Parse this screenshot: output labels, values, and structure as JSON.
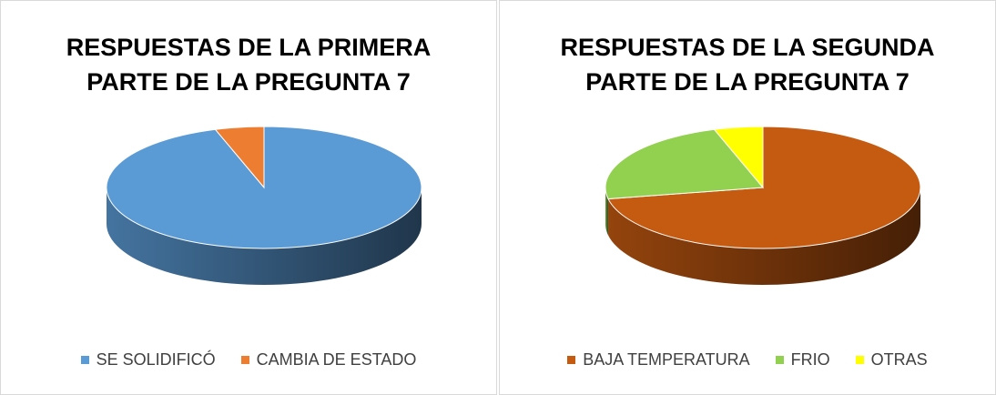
{
  "chart_data": [
    {
      "type": "pie3d",
      "title": "RESPUESTAS DE LA PRIMERA PARTE DE LA PREGUNTA 7",
      "categories": [
        "SE SOLIDIFICÓ",
        "CAMBIA DE ESTADO"
      ],
      "values": [
        95,
        5
      ],
      "colors": [
        "#5b9bd5",
        "#ed7d31"
      ],
      "legend": "bottom"
    },
    {
      "type": "pie3d",
      "title": "RESPUESTAS DE LA SEGUNDA PARTE DE LA PREGUNTA 7",
      "categories": [
        "BAJA TEMPERATURA",
        "FRIO",
        "OTRAS"
      ],
      "values": [
        72,
        23,
        5
      ],
      "colors": [
        "#c55a11",
        "#92d050",
        "#ffff00"
      ],
      "legend": "bottom"
    }
  ]
}
